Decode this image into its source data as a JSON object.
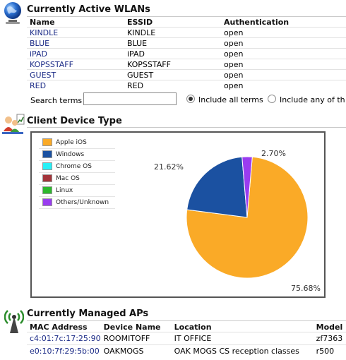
{
  "wlans": {
    "title": "Currently Active WLANs",
    "columns": [
      "Name",
      "ESSID",
      "Authentication"
    ],
    "rows": [
      {
        "name": "KINDLE",
        "essid": "KINDLE",
        "auth": "open"
      },
      {
        "name": "BLUE",
        "essid": "BLUE",
        "auth": "open"
      },
      {
        "name": "iPAD",
        "essid": "iPAD",
        "auth": "open"
      },
      {
        "name": "KOPSSTAFF",
        "essid": "KOPSSTAFF",
        "auth": "open"
      },
      {
        "name": "GUEST",
        "essid": "GUEST",
        "auth": "open"
      },
      {
        "name": "RED",
        "essid": "RED",
        "auth": "open"
      }
    ]
  },
  "search": {
    "label": "Search terms",
    "value": "",
    "option_all": "Include all terms",
    "option_any": "Include any of th"
  },
  "devices": {
    "title": "Client Device Type"
  },
  "chart_data": {
    "type": "pie",
    "categories": [
      "Apple iOS",
      "Windows",
      "Chrome OS",
      "Mac OS",
      "Linux",
      "Others/Unknown"
    ],
    "values": [
      75.68,
      21.62,
      0,
      0,
      0,
      2.7
    ],
    "data_labels": [
      "75.68%",
      "21.62%",
      "",
      "",
      "",
      "2.70%"
    ],
    "colors": [
      "#FAAA27",
      "#1B51A1",
      "#27F0F6",
      "#A3343A",
      "#2EB82E",
      "#9A3CF0"
    ],
    "legend_position": "top-left"
  },
  "aps": {
    "title": "Currently Managed APs",
    "columns": [
      "MAC Address",
      "Device Name",
      "Location",
      "Model"
    ],
    "rows": [
      {
        "mac": "c4:01:7c:17:25:90",
        "name": "ROOMITOFF",
        "location": "IT OFFICE",
        "model": "zf7363"
      },
      {
        "mac": "e0:10:7f:29:5b:00",
        "name": "OAKMOGS",
        "location": "OAK MOGS CS reception classes",
        "model": "r500"
      }
    ]
  }
}
